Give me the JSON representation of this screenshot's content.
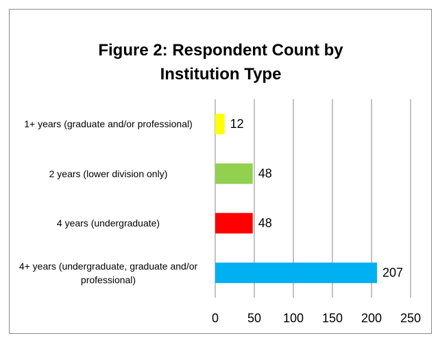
{
  "chart_data": {
    "type": "hbar",
    "title": "Figure 2: Respondent Count by Institution Type",
    "categories": [
      "1+ years (graduate and/or professional)",
      "2 years (lower division only)",
      "4 years (undergraduate)",
      "4+ years (undergraduate, graduate and/or professional)"
    ],
    "values": [
      12,
      48,
      48,
      207
    ],
    "colors": [
      "#ffff00",
      "#92d050",
      "#ff0000",
      "#00b0f0"
    ],
    "xlim": [
      0,
      250
    ],
    "xticks": [
      0,
      50,
      100,
      150,
      200,
      250
    ],
    "grid": true
  }
}
